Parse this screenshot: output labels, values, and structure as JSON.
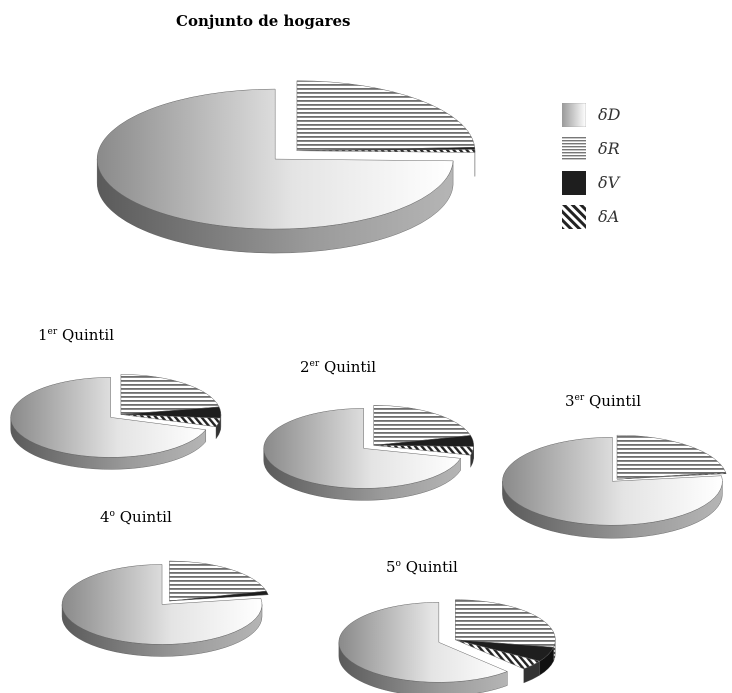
{
  "chart_data": [
    {
      "type": "pie",
      "title": "Conjunto de hogares",
      "series": [
        {
          "name": "δD",
          "value": 74.6
        },
        {
          "name": "δR",
          "value": 24.2
        },
        {
          "name": "δV",
          "value": 0.5
        },
        {
          "name": "δA",
          "value": 0.7
        }
      ]
    },
    {
      "type": "pie",
      "title_main": "1",
      "title_sup": "er",
      "title_rest": " Quintil",
      "series": [
        {
          "name": "δD",
          "value": 70.0
        },
        {
          "name": "δR",
          "value": 22.0
        },
        {
          "name": "δV",
          "value": 4.5
        },
        {
          "name": "δA",
          "value": 3.5
        }
      ]
    },
    {
      "type": "pie",
      "title_main": "2",
      "title_sup": "er",
      "title_rest": " Quintil",
      "series": [
        {
          "name": "δD",
          "value": 71.0
        },
        {
          "name": "δR",
          "value": 21.0
        },
        {
          "name": "δV",
          "value": 4.5
        },
        {
          "name": "δA",
          "value": 3.5
        }
      ]
    },
    {
      "type": "pie",
      "title_main": "3",
      "title_sup": "er",
      "title_rest": " Quintil",
      "series": [
        {
          "name": "δD",
          "value": 77.0
        },
        {
          "name": "δR",
          "value": 22.5
        },
        {
          "name": "δV",
          "value": 0.2
        },
        {
          "name": "δA",
          "value": 0.3
        }
      ]
    },
    {
      "type": "pie",
      "title_main": "4",
      "title_sup": "o",
      "title_rest": " Quintil",
      "series": [
        {
          "name": "δD",
          "value": 77.5
        },
        {
          "name": "δR",
          "value": 21.0
        },
        {
          "name": "δV",
          "value": 1.5
        },
        {
          "name": "δA",
          "value": 0.0
        }
      ]
    },
    {
      "type": "pie",
      "title_main": "5",
      "title_sup": "o",
      "title_rest": " Quintil",
      "series": [
        {
          "name": "δD",
          "value": 62.0
        },
        {
          "name": "δR",
          "value": 28.0
        },
        {
          "name": "δV",
          "value": 6.0
        },
        {
          "name": "δA",
          "value": 4.0
        }
      ]
    }
  ],
  "legend": [
    {
      "label": "δD",
      "pattern": "gradient"
    },
    {
      "label": "δR",
      "pattern": "horizontal-stripes"
    },
    {
      "label": "δV",
      "pattern": "solid-dark"
    },
    {
      "label": "δA",
      "pattern": "diagonal-stripes"
    }
  ],
  "colors": {
    "gradient_light": "#ffffff",
    "gradient_dark": "#8a8a8a",
    "stripe": "#6e6e6e",
    "dark": "#1e1e1e",
    "side_light": "#9a9a9a",
    "side_dark": "#5a5a5a"
  }
}
